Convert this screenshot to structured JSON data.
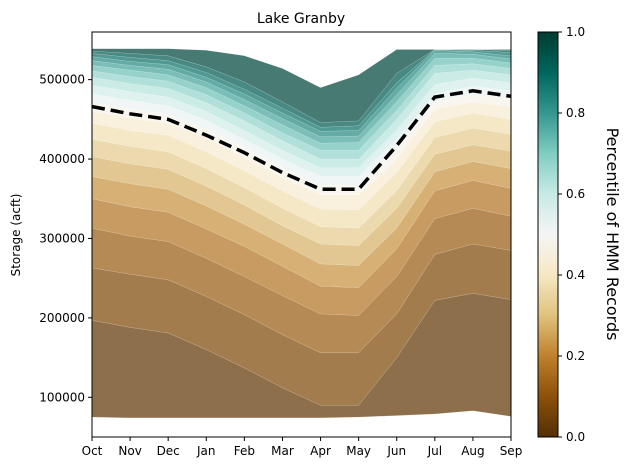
{
  "chart_data": {
    "type": "area",
    "title": "Lake Granby",
    "ylabel": "Storage (acft)",
    "xlabel": "",
    "categories": [
      "Oct",
      "Nov",
      "Dec",
      "Jan",
      "Feb",
      "Mar",
      "Apr",
      "May",
      "Jun",
      "Jul",
      "Aug",
      "Sep"
    ],
    "ylim": [
      50000,
      560000
    ],
    "yticks": [
      100000,
      200000,
      300000,
      400000,
      500000
    ],
    "ytick_labels": [
      "100000",
      "200000",
      "300000",
      "400000",
      "500000"
    ],
    "grid": false,
    "legend": "none",
    "colormap": "BrBG",
    "colorbar": {
      "label": "Percentile of HMM Records",
      "range": [
        0,
        1
      ],
      "ticks": [
        "0.0",
        "0.2",
        "0.4",
        "0.6",
        "0.8",
        "1.0"
      ],
      "colors": [
        "#543005",
        "#8c510a",
        "#bf812d",
        "#dfc27d",
        "#f6e8c3",
        "#f5f5f5",
        "#c7eae5",
        "#80cdc1",
        "#35978f",
        "#01665e",
        "#003c30"
      ]
    },
    "percentile_bands": [
      {
        "p": 0.0,
        "values": [
          75000,
          74000,
          74000,
          74000,
          74000,
          74000,
          74000,
          75000,
          77000,
          79000,
          83000,
          76000
        ]
      },
      {
        "p": 0.05,
        "values": [
          197000,
          188000,
          181000,
          160000,
          137000,
          112000,
          90000,
          90000,
          150000,
          222000,
          231000,
          223000
        ]
      },
      {
        "p": 0.1,
        "values": [
          263000,
          255000,
          248000,
          227000,
          204000,
          179000,
          156000,
          156000,
          205000,
          280000,
          293000,
          285000
        ]
      },
      {
        "p": 0.15,
        "values": [
          313000,
          303000,
          296000,
          275000,
          252000,
          228000,
          205000,
          203000,
          252000,
          325000,
          338000,
          328000
        ]
      },
      {
        "p": 0.2,
        "values": [
          350000,
          340000,
          333000,
          312000,
          290000,
          265000,
          240000,
          238000,
          287000,
          360000,
          373000,
          363000
        ]
      },
      {
        "p": 0.25,
        "values": [
          378000,
          369000,
          362000,
          341000,
          318000,
          293000,
          268000,
          266000,
          313000,
          384000,
          397000,
          388000
        ]
      },
      {
        "p": 0.3,
        "values": [
          403000,
          394000,
          387000,
          366000,
          342000,
          316000,
          293000,
          291000,
          338000,
          406000,
          418000,
          410000
        ]
      },
      {
        "p": 0.35,
        "values": [
          425000,
          416000,
          409000,
          388000,
          364000,
          338000,
          315000,
          313000,
          360000,
          427000,
          439000,
          431000
        ]
      },
      {
        "p": 0.4,
        "values": [
          445000,
          436000,
          430000,
          409000,
          385000,
          360000,
          337000,
          336000,
          383000,
          447000,
          458000,
          450000
        ]
      },
      {
        "p": 0.45,
        "values": [
          460000,
          452000,
          445000,
          427000,
          402000,
          377000,
          355000,
          355000,
          400000,
          463000,
          472000,
          466000
        ]
      },
      {
        "p": 0.5,
        "values": [
          471000,
          463000,
          456000,
          438000,
          414000,
          389000,
          367000,
          367000,
          412000,
          472000,
          481000,
          476000
        ]
      },
      {
        "p": 0.55,
        "values": [
          482000,
          474000,
          467000,
          449000,
          425000,
          400000,
          378000,
          378000,
          425000,
          482000,
          492000,
          486000
        ]
      },
      {
        "p": 0.6,
        "values": [
          493000,
          485000,
          478000,
          460000,
          436000,
          411000,
          389000,
          389000,
          437000,
          494000,
          502000,
          496000
        ]
      },
      {
        "p": 0.65,
        "values": [
          503000,
          495000,
          489000,
          471000,
          448000,
          423000,
          400000,
          400000,
          450000,
          508000,
          512000,
          506000
        ]
      },
      {
        "p": 0.7,
        "values": [
          511000,
          504000,
          498000,
          481000,
          458000,
          433000,
          411000,
          411000,
          461000,
          518000,
          520000,
          514000
        ]
      },
      {
        "p": 0.75,
        "values": [
          518000,
          512000,
          506000,
          490000,
          467000,
          443000,
          420000,
          421000,
          472000,
          527000,
          527000,
          521000
        ]
      },
      {
        "p": 0.8,
        "values": [
          524000,
          518000,
          513000,
          497000,
          475000,
          451000,
          428000,
          429000,
          481000,
          533000,
          532000,
          526000
        ]
      },
      {
        "p": 0.85,
        "values": [
          529000,
          523000,
          519000,
          503000,
          482000,
          458000,
          435000,
          436000,
          489000,
          537000,
          535000,
          530000
        ]
      },
      {
        "p": 0.9,
        "values": [
          533000,
          528000,
          524000,
          509000,
          488000,
          464000,
          440000,
          442000,
          496000,
          538000,
          537000,
          534000
        ]
      },
      {
        "p": 0.95,
        "values": [
          536000,
          533000,
          530000,
          516000,
          497000,
          472000,
          446000,
          448000,
          508000,
          538000,
          538000,
          537000
        ]
      },
      {
        "p": 1.0,
        "values": [
          539000,
          539000,
          539000,
          537000,
          530000,
          514000,
          490000,
          506000,
          538000,
          538000,
          538000,
          538000
        ]
      }
    ],
    "median_line": {
      "style": "dashed",
      "color": "#000000",
      "values": [
        466000,
        457000,
        450000,
        430000,
        408000,
        383000,
        362000,
        362000,
        417000,
        478000,
        486000,
        479000
      ]
    }
  }
}
